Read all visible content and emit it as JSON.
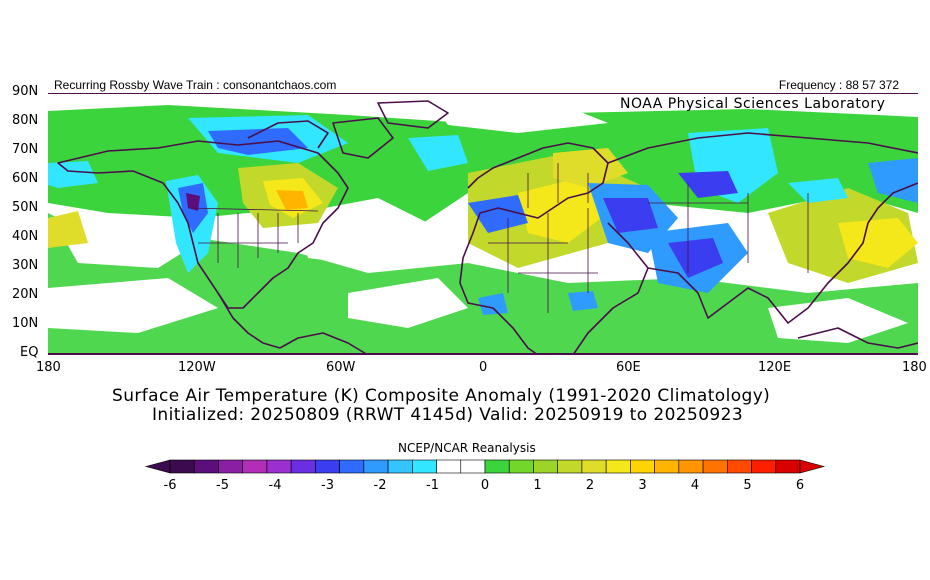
{
  "header": {
    "left_text": "Recurring Rossby Wave Train : consonantchaos.com",
    "right_text": "Frequency : 88 57 372",
    "lab_text": "NOAA Physical Sciences Laboratory"
  },
  "map": {
    "lat_labels": [
      "90N",
      "80N",
      "70N",
      "60N",
      "50N",
      "40N",
      "30N",
      "20N",
      "10N",
      "EQ"
    ],
    "lon_labels": [
      "180",
      "120W",
      "60W",
      "0",
      "60E",
      "120E",
      "180"
    ],
    "colors": {
      "ocean_background": "#ffffff",
      "coastline": "#4a0f4a",
      "frame": "#4a0f4a"
    }
  },
  "title": {
    "line1": "Surface Air Temperature (K) Composite Anomaly (1991-2020 Climatology)",
    "line2": "Initialized: 20250809 (RRWT 4145d) Valid: 20250919 to 20250923"
  },
  "source": "NCEP/NCAR Reanalysis",
  "colorbar": {
    "ticks": [
      "-6",
      "-5",
      "-4",
      "-3",
      "-2",
      "-1",
      "0",
      "1",
      "2",
      "3",
      "4",
      "5",
      "6"
    ],
    "colors": [
      "#3b0a4f",
      "#5c0f7a",
      "#8a1fa3",
      "#b22eb5",
      "#9b2fd0",
      "#6a2fe0",
      "#3b3ef0",
      "#2f6bff",
      "#2f9bff",
      "#34c5ff",
      "#33e6ff",
      "#ffffff",
      "#ffffff",
      "#3cd43c",
      "#72d72a",
      "#9cd52a",
      "#c2d82a",
      "#e0dd2a",
      "#f5e81a",
      "#ffd400",
      "#ffb400",
      "#ff9600",
      "#ff7300",
      "#ff4a00",
      "#ff1e00",
      "#d80000"
    ]
  }
}
